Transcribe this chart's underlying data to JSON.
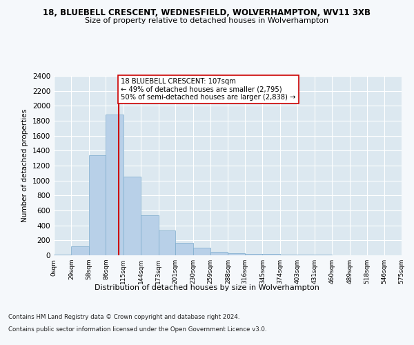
{
  "title1": "18, BLUEBELL CRESCENT, WEDNESFIELD, WOLVERHAMPTON, WV11 3XB",
  "title2": "Size of property relative to detached houses in Wolverhampton",
  "xlabel": "Distribution of detached houses by size in Wolverhampton",
  "ylabel": "Number of detached properties",
  "footer1": "Contains HM Land Registry data © Crown copyright and database right 2024.",
  "footer2": "Contains public sector information licensed under the Open Government Licence v3.0.",
  "annotation_line1": "18 BLUEBELL CRESCENT: 107sqm",
  "annotation_line2": "← 49% of detached houses are smaller (2,795)",
  "annotation_line3": "50% of semi-detached houses are larger (2,838) →",
  "bar_color": "#b8d0e8",
  "bar_edge_color": "#7aaacc",
  "marker_color": "#cc0000",
  "marker_value": 107,
  "bin_edges": [
    0,
    29,
    58,
    86,
    115,
    144,
    173,
    201,
    230,
    259,
    288,
    316,
    345,
    374,
    403,
    431,
    460,
    489,
    518,
    546,
    575
  ],
  "bin_labels": [
    "0sqm",
    "29sqm",
    "58sqm",
    "86sqm",
    "115sqm",
    "144sqm",
    "173sqm",
    "201sqm",
    "230sqm",
    "259sqm",
    "288sqm",
    "316sqm",
    "345sqm",
    "374sqm",
    "403sqm",
    "431sqm",
    "460sqm",
    "489sqm",
    "518sqm",
    "546sqm",
    "575sqm"
  ],
  "counts": [
    10,
    120,
    1340,
    1880,
    1050,
    540,
    335,
    165,
    100,
    50,
    30,
    20,
    15,
    10,
    5,
    8,
    2,
    0,
    2,
    0
  ],
  "ylim": [
    0,
    2400
  ],
  "yticks": [
    0,
    200,
    400,
    600,
    800,
    1000,
    1200,
    1400,
    1600,
    1800,
    2000,
    2200,
    2400
  ],
  "background_color": "#dce8f0",
  "plot_bg_color": "#dce8f0",
  "fig_bg_color": "#f5f8fb"
}
